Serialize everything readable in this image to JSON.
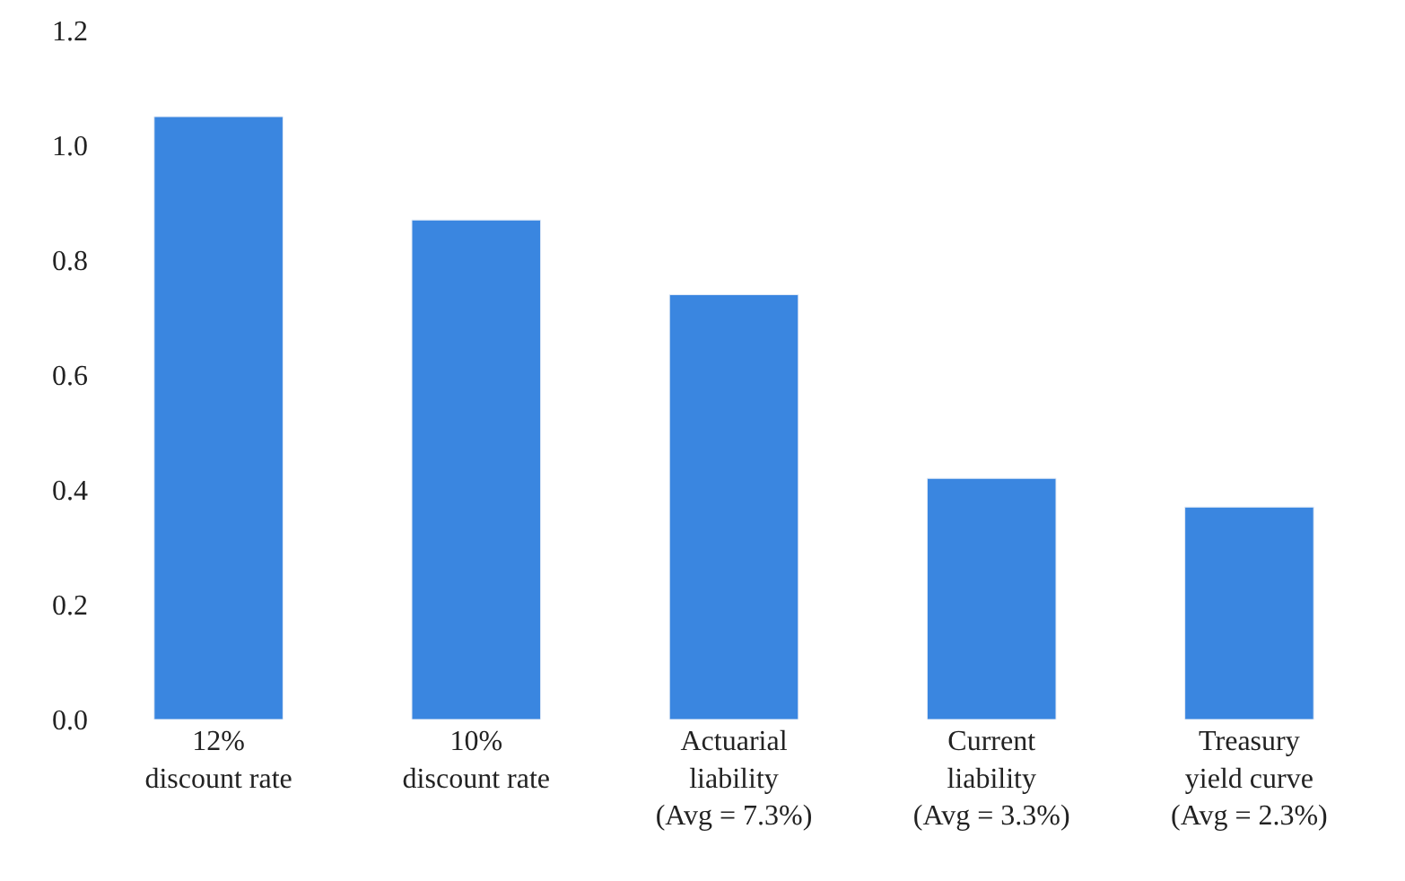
{
  "chart_data": {
    "type": "bar",
    "categories": [
      "12%\ndiscount rate",
      "10%\ndiscount rate",
      "Actuarial\nliability\n(Avg = 7.3%)",
      "Current\nliability\n(Avg = 3.3%)",
      "Treasury\nyield curve\n(Avg = 2.3%)"
    ],
    "values": [
      1.05,
      0.87,
      0.74,
      0.42,
      0.37
    ],
    "color": "#3a86e0",
    "ylim": [
      0,
      1.2
    ],
    "yticks": [
      {
        "value": 0,
        "label": "0.0"
      },
      {
        "value": 0.2,
        "label": "0.2"
      },
      {
        "value": 0.4,
        "label": "0.4"
      },
      {
        "value": 0.6,
        "label": "0.6"
      },
      {
        "value": 0.8,
        "label": "0.8"
      },
      {
        "value": 1.0,
        "label": "1.0"
      },
      {
        "value": 1.2,
        "label": "1.2"
      }
    ],
    "orientation": "vertical"
  }
}
